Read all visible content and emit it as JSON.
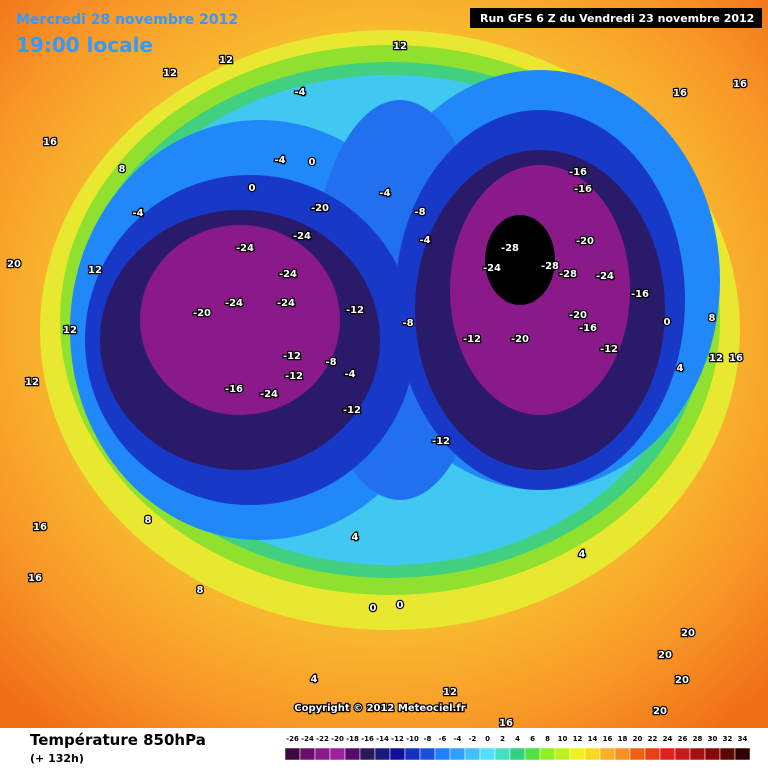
{
  "header": {
    "date": "Mercredi 28 novembre 2012",
    "time": "19:00 locale",
    "run": "Run GFS 6 Z du Vendredi 23 novembre 2012"
  },
  "copyright": "Copyright © 2012 Meteociel.fr",
  "footer": {
    "title": "Température 850hPa",
    "lead": "(+ 132h)"
  },
  "legend": {
    "values": [
      -26,
      -24,
      -22,
      -20,
      -18,
      -16,
      -14,
      -12,
      -10,
      -8,
      -6,
      -4,
      -2,
      0,
      2,
      4,
      6,
      8,
      10,
      12,
      14,
      16,
      18,
      20,
      22,
      24,
      26,
      28,
      30,
      32,
      34
    ],
    "colors": [
      "#3d0a3d",
      "#6b0f6b",
      "#8a1a8a",
      "#a020a0",
      "#5a0a6a",
      "#2a1a5a",
      "#1a1a7a",
      "#10109a",
      "#1530c0",
      "#1a50e0",
      "#2080ff",
      "#30a0ff",
      "#40c0ff",
      "#50e0ff",
      "#40e0c0",
      "#30d080",
      "#50e040",
      "#90f020",
      "#c0f020",
      "#f0f020",
      "#f8d820",
      "#f8b020",
      "#f89020",
      "#f06010",
      "#e84010",
      "#e02020",
      "#c81818",
      "#a81010",
      "#880808",
      "#600404",
      "#300000"
    ]
  },
  "map": {
    "labels": [
      12,
      12,
      12,
      16,
      16,
      16,
      -4,
      -4,
      0,
      0,
      -16,
      -16,
      -20,
      -24,
      -24,
      -24,
      -20,
      -24,
      -24,
      -12,
      -8,
      -28,
      -24,
      -28,
      -28,
      -20,
      -24,
      -16,
      -20,
      -16,
      -12,
      -20,
      -12,
      -12,
      -16,
      -24,
      -12,
      -12,
      -12,
      -8,
      -4,
      0,
      4,
      8,
      12,
      16,
      -4,
      -8,
      -4,
      20,
      12,
      16,
      16,
      8,
      8,
      4,
      4,
      0,
      0,
      20,
      20,
      20,
      20,
      16,
      4,
      12,
      -4,
      8,
      12,
      12
    ]
  }
}
